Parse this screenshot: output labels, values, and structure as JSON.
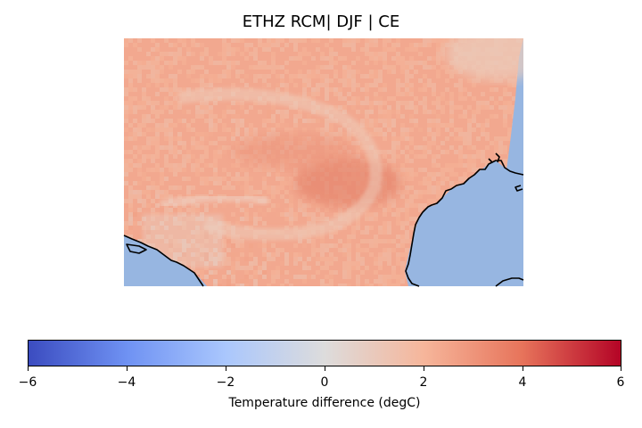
{
  "title": "ETHZ RCM| DJF | CE",
  "colorbar": {
    "label": "Temperature difference (degC)",
    "min": -6,
    "max": 6,
    "colormap": "coolwarm",
    "colors": [
      "#3b4cc0",
      "#6f92f3",
      "#aac7fd",
      "#dddcdc",
      "#f6b69b",
      "#e7745b",
      "#b40426"
    ],
    "ticks": [
      "−6",
      "−4",
      "−2",
      "0",
      "2",
      "4",
      "6"
    ]
  },
  "map": {
    "ocean_color": "#97b6e1",
    "coastline_color": "#000000",
    "field_base_value": 1.8,
    "field_range": [
      -0.5,
      4.2
    ]
  }
}
